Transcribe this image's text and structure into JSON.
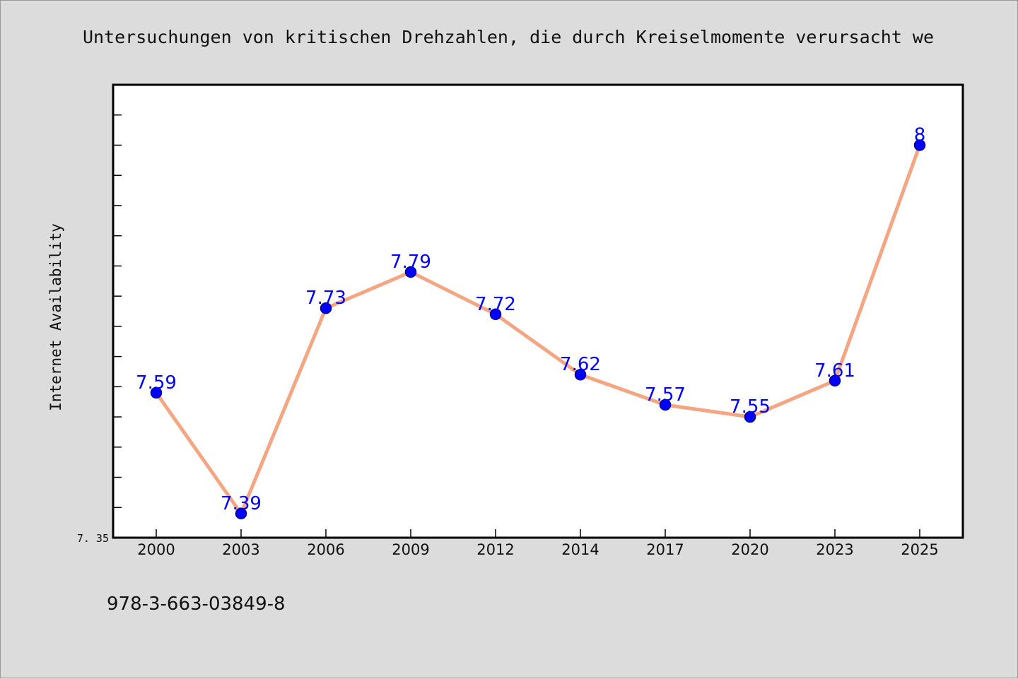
{
  "chart_data": {
    "type": "line",
    "title": "Untersuchungen von kritischen Drehzahlen, die durch Kreiselmomente verursacht we",
    "xlabel": "",
    "ylabel": "Internet Availability",
    "categories": [
      "2000",
      "2003",
      "2006",
      "2009",
      "2012",
      "2014",
      "2017",
      "2020",
      "2023",
      "2025"
    ],
    "series": [
      {
        "values": [
          7.59,
          7.39,
          7.73,
          7.79,
          7.72,
          7.62,
          7.57,
          7.55,
          7.61,
          8
        ]
      }
    ],
    "data_labels": [
      "7.59",
      "7.39",
      "7.73",
      "7.79",
      "7.72",
      "7.62",
      "7.57",
      "7.55",
      "7.61",
      "8"
    ],
    "ylim": [
      7.35,
      8.1
    ],
    "ytick_labels": [
      {
        "value": 7.35,
        "label": "7. 35"
      }
    ],
    "minor_tick_step": 0.05,
    "grid": false,
    "legend": "none",
    "colors": {
      "line": "#f4a582",
      "marker_fill": "#0000ff",
      "marker_edge": "#00008b",
      "data_label": "#0000ff",
      "plot_background": "#ffffff",
      "page_background": "#dcdcdc"
    },
    "footnote": "978-3-663-03849-8"
  }
}
